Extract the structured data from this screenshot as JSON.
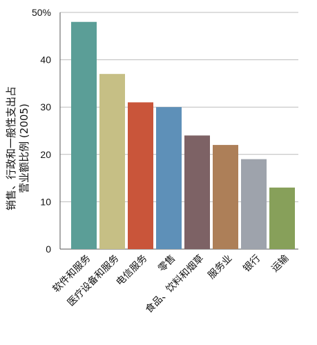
{
  "chart_data": {
    "type": "bar",
    "title": "",
    "ylabel_lines": [
      "销售、行政和一般性支出占",
      "营业额比例 (2005)"
    ],
    "xlabel": "",
    "categories": [
      "软件和服务",
      "医疗设备和服务",
      "电信服务",
      "零售",
      "食品、饮料和烟草",
      "服务业",
      "银行",
      "运输"
    ],
    "values": [
      48,
      37,
      31,
      30,
      24,
      22,
      19,
      13
    ],
    "colors": [
      "#5b9e97",
      "#c6bf85",
      "#c9553a",
      "#5e90b8",
      "#7d6265",
      "#ad7f58",
      "#9ea3ac",
      "#87a05a"
    ],
    "ylim": [
      0,
      50
    ],
    "yticks": [
      {
        "value": 0,
        "label": "0"
      },
      {
        "value": 10,
        "label": "10"
      },
      {
        "value": 20,
        "label": "20"
      },
      {
        "value": 30,
        "label": "30"
      },
      {
        "value": 40,
        "label": "40"
      },
      {
        "value": 50,
        "label": "50%"
      }
    ],
    "grid": true,
    "legend": "none"
  }
}
